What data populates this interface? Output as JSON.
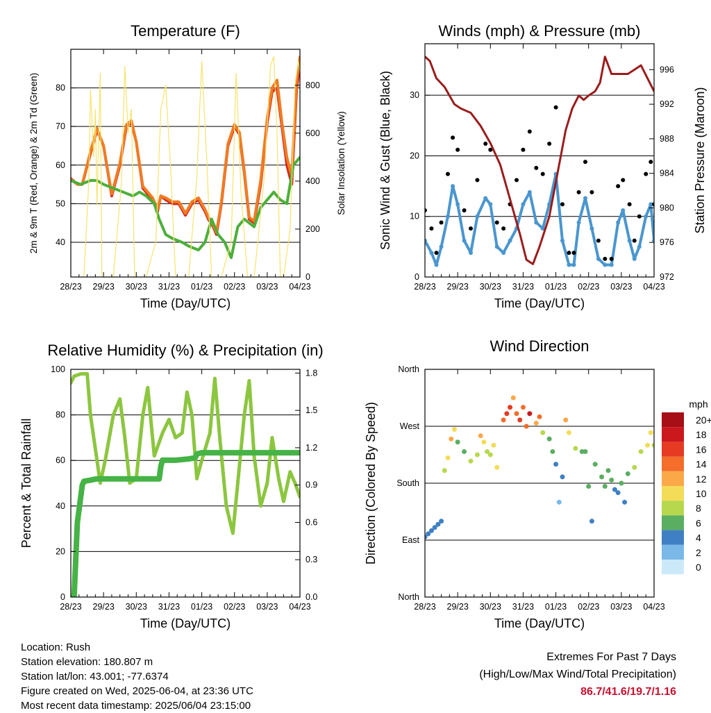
{
  "figure": {
    "x_tick_labels": [
      "28/23",
      "29/23",
      "30/23",
      "31/23",
      "01/23",
      "02/23",
      "03/23",
      "04/23"
    ],
    "x_axis_label": "Time (Day/UTC)"
  },
  "info": {
    "location": "Location: Rush",
    "elevation": "Station elevation: 180.807 m",
    "latlon": "Station lat/lon: 43.001; -77.6374",
    "created": "Figure created on Wed, 2025-06-04, at 23:36 UTC",
    "recent": "Most recent data timestamp: 2025/06/04 23:15:00"
  },
  "extremes": {
    "title": "Extremes For Past 7 Days",
    "subtitle": "(High/Low/Max Wind/Total Precipitation)",
    "values": "86.7/41.6/19.7/1.16"
  },
  "colors": {
    "red": "#d7261e",
    "orange": "#f07c22",
    "green": "#4caf3a",
    "yellow": "#f7e36b",
    "black": "#000000",
    "blue": "#4a96cf",
    "maroon": "#9b1c1c",
    "rh": "#8cc63f",
    "precip": "#45b345"
  },
  "chart_data": [
    {
      "type": "line",
      "title": "Temperature (F)",
      "xlabel": "Time (Day/UTC)",
      "ylabel": "2m & 9m T (Red, Orange) & 2m Td (Green)",
      "y2label": "Solar Insolation (Yellow)",
      "xlim": [
        0,
        7
      ],
      "ylim": [
        31,
        90
      ],
      "y2lim": [
        0,
        950
      ],
      "yticks": [
        40,
        50,
        60,
        70,
        80
      ],
      "y2ticks": [
        0,
        200,
        400,
        600,
        800
      ],
      "series": [
        {
          "name": "2m T",
          "color": "red",
          "x": [
            0,
            0.2,
            0.35,
            0.6,
            0.8,
            1.0,
            1.25,
            1.5,
            1.7,
            1.85,
            2.0,
            2.2,
            2.5,
            2.65,
            2.75,
            2.9,
            3.1,
            3.3,
            3.5,
            3.7,
            3.9,
            4.1,
            4.2,
            4.35,
            4.45,
            4.6,
            4.8,
            5.0,
            5.15,
            5.3,
            5.45,
            5.6,
            5.8,
            6.0,
            6.15,
            6.3,
            6.45,
            6.6,
            6.75,
            6.9,
            7.0
          ],
          "y": [
            56.5,
            55,
            55,
            63,
            69,
            65,
            52,
            60,
            70,
            71,
            66,
            54,
            51,
            48,
            52,
            51,
            50,
            50,
            47,
            50,
            51,
            48,
            46,
            44,
            42,
            50,
            65,
            70,
            68,
            58,
            46,
            45,
            55,
            71,
            79,
            80,
            70,
            60,
            55,
            80,
            86
          ]
        },
        {
          "name": "9m T",
          "color": "orange",
          "x": [
            0,
            0.2,
            0.35,
            0.6,
            0.8,
            1.0,
            1.25,
            1.5,
            1.7,
            1.85,
            2.0,
            2.2,
            2.5,
            2.65,
            2.75,
            2.9,
            3.1,
            3.3,
            3.5,
            3.7,
            3.9,
            4.1,
            4.2,
            4.35,
            4.45,
            4.6,
            4.8,
            5.0,
            5.15,
            5.3,
            5.45,
            5.6,
            5.8,
            6.0,
            6.15,
            6.3,
            6.45,
            6.6,
            6.75,
            6.9,
            7.0
          ],
          "y": [
            56.3,
            55,
            55,
            63.5,
            69.5,
            65,
            52.5,
            60.5,
            70.5,
            71.5,
            66,
            54.5,
            51.5,
            48.5,
            52,
            51.5,
            50.5,
            50.5,
            47.5,
            50.5,
            51.5,
            48.5,
            46.5,
            44.5,
            42.5,
            50.5,
            65.5,
            70.5,
            68.5,
            58.5,
            46.5,
            45.5,
            56,
            72,
            80,
            82,
            71,
            62,
            57,
            82,
            88
          ]
        },
        {
          "name": "2m Td",
          "color": "green",
          "x": [
            0,
            0.3,
            0.6,
            0.8,
            1.0,
            1.3,
            1.6,
            1.9,
            2.1,
            2.3,
            2.55,
            2.7,
            2.9,
            3.1,
            3.4,
            3.6,
            3.9,
            4.1,
            4.3,
            4.5,
            4.7,
            4.9,
            5.1,
            5.3,
            5.45,
            5.6,
            5.8,
            6.0,
            6.2,
            6.4,
            6.6,
            6.8,
            7.0
          ],
          "y": [
            56,
            55,
            56,
            56,
            55,
            54,
            53,
            52,
            53,
            52,
            50,
            46,
            42,
            41,
            40,
            39,
            38,
            40,
            46,
            42,
            40,
            36,
            44,
            46,
            45,
            44,
            49,
            51,
            53,
            51,
            50,
            60,
            62
          ]
        },
        {
          "name": "Solar Insolation",
          "color": "yellow",
          "axis": "y2",
          "x": [
            0.4,
            0.55,
            0.6,
            0.7,
            0.75,
            0.8,
            0.9,
            0.95,
            1.3,
            1.55,
            1.65,
            1.75,
            1.85,
            1.95,
            2.3,
            2.6,
            2.75,
            2.9,
            3.05,
            3.2,
            3.3,
            3.6,
            3.85,
            4.0,
            4.15,
            4.3,
            4.6,
            4.9,
            5.05,
            5.1,
            5.2,
            5.4,
            5.6,
            5.9,
            6.1,
            6.2,
            6.3,
            6.4,
            6.5,
            6.7,
            6.85,
            6.95,
            7.0
          ],
          "y": [
            0,
            400,
            780,
            500,
            700,
            300,
            850,
            0,
            0,
            400,
            880,
            600,
            700,
            0,
            0,
            150,
            700,
            800,
            450,
            0,
            0,
            0,
            420,
            900,
            500,
            0,
            0,
            150,
            850,
            700,
            350,
            0,
            0,
            400,
            880,
            920,
            600,
            0,
            0,
            200,
            800,
            900,
            850
          ]
        }
      ]
    },
    {
      "type": "scatter",
      "title": "Winds (mph) & Pressure (mb)",
      "xlabel": "Time (Day/UTC)",
      "ylabel": "Sonic Wind & Gust (Blue, Black)",
      "y2label": "Station Pressure (Maroon)",
      "xlim": [
        0,
        7
      ],
      "ylim": [
        0,
        38.5
      ],
      "y2lim": [
        972,
        999
      ],
      "yticks": [
        0,
        10,
        20,
        30
      ],
      "y2ticks": [
        972,
        976,
        980,
        984,
        988,
        992,
        996
      ],
      "series": [
        {
          "name": "Wind",
          "color": "blue",
          "x": [
            0,
            0.2,
            0.35,
            0.5,
            0.7,
            0.85,
            1.0,
            1.2,
            1.4,
            1.6,
            1.85,
            2.0,
            2.2,
            2.4,
            2.6,
            2.8,
            3.0,
            3.2,
            3.4,
            3.6,
            3.8,
            4.0,
            4.2,
            4.4,
            4.55,
            4.7,
            4.9,
            5.1,
            5.3,
            5.5,
            5.7,
            5.9,
            6.05,
            6.25,
            6.4,
            6.55,
            6.75,
            6.9,
            7.0
          ],
          "y": [
            6,
            4,
            2,
            5,
            10,
            15,
            12,
            6,
            4,
            10,
            13,
            12,
            5,
            4,
            6,
            8,
            12,
            14,
            9,
            8,
            12,
            17,
            6,
            2,
            2,
            9,
            13,
            8,
            3,
            2,
            2,
            9,
            11,
            6,
            3,
            5,
            10,
            12,
            6
          ]
        },
        {
          "name": "Gust",
          "color": "black",
          "x": [
            0,
            0.2,
            0.35,
            0.5,
            0.7,
            0.85,
            1.0,
            1.2,
            1.4,
            1.6,
            1.85,
            2.0,
            2.2,
            2.4,
            2.6,
            2.8,
            3.0,
            3.2,
            3.4,
            3.6,
            3.8,
            4.0,
            4.2,
            4.4,
            4.55,
            4.7,
            4.9,
            5.1,
            5.3,
            5.5,
            5.7,
            5.9,
            6.05,
            6.25,
            6.4,
            6.55,
            6.75,
            6.9,
            7.0
          ],
          "y": [
            11,
            8,
            4,
            9,
            17,
            23,
            21,
            11,
            8,
            16,
            22,
            21,
            9,
            8,
            12,
            16,
            21,
            24,
            18,
            17,
            22,
            28,
            12,
            4,
            4,
            14,
            19,
            14,
            6,
            3,
            3,
            15,
            16,
            12,
            6,
            10,
            17,
            19,
            12
          ]
        },
        {
          "name": "Pressure",
          "color": "maroon",
          "axis": "y2",
          "x": [
            0,
            0.15,
            0.35,
            0.6,
            0.9,
            1.1,
            1.4,
            1.7,
            2.0,
            2.3,
            2.6,
            2.9,
            3.1,
            3.3,
            3.5,
            3.8,
            4.1,
            4.3,
            4.5,
            4.7,
            4.85,
            5.0,
            5.2,
            5.35,
            5.5,
            5.7,
            5.85,
            6.0,
            6.2,
            6.4,
            6.6,
            6.8,
            7.0
          ],
          "y": [
            997.5,
            997,
            995,
            994,
            992,
            991.5,
            991,
            989.5,
            987.5,
            985,
            981,
            977,
            974,
            973.5,
            975.5,
            979,
            985,
            989,
            991.5,
            993,
            992.5,
            993,
            993.5,
            994.5,
            997.5,
            995.5,
            995.5,
            995.5,
            995.5,
            996,
            996.5,
            995,
            993.5
          ]
        }
      ]
    },
    {
      "type": "line",
      "title": "Relative Humidity (%) & Precipitation (in)",
      "xlabel": "Time (Day/UTC)",
      "ylabel": "Percent & Total Rainfall",
      "xlim": [
        0,
        7
      ],
      "ylim": [
        0,
        100
      ],
      "y2lim": [
        0,
        1.83
      ],
      "yticks": [
        0,
        20,
        40,
        60,
        80,
        100
      ],
      "y2ticks": [
        0.0,
        0.3,
        0.6,
        0.9,
        1.2,
        1.5,
        1.8
      ],
      "series": [
        {
          "name": "Relative Humidity",
          "color": "rh",
          "x": [
            0,
            0.1,
            0.3,
            0.5,
            0.6,
            0.8,
            0.9,
            1.05,
            1.3,
            1.5,
            1.65,
            1.8,
            2.0,
            2.2,
            2.35,
            2.55,
            2.8,
            3.0,
            3.2,
            3.4,
            3.55,
            3.7,
            3.85,
            4.0,
            4.25,
            4.4,
            4.55,
            4.75,
            4.95,
            5.1,
            5.3,
            5.45,
            5.6,
            5.8,
            6.0,
            6.15,
            6.35,
            6.5,
            6.7,
            6.85,
            7.0
          ],
          "y": [
            94,
            97,
            98,
            98,
            80,
            60,
            50,
            60,
            80,
            87,
            70,
            50,
            52,
            80,
            92,
            62,
            72,
            78,
            70,
            72,
            90,
            80,
            52,
            60,
            72,
            96,
            70,
            40,
            28,
            50,
            80,
            95,
            62,
            40,
            50,
            70,
            52,
            42,
            55,
            50,
            44
          ]
        },
        {
          "name": "Total Precipitation",
          "color": "precip",
          "axis": "y2",
          "x": [
            0,
            0.1,
            0.15,
            0.2,
            0.3,
            0.35,
            0.4,
            0.6,
            0.8,
            1.0,
            1.5,
            2.0,
            2.5,
            2.7,
            2.75,
            2.8,
            3.2,
            3.6,
            3.8,
            3.85,
            4.0,
            5.0,
            6.0,
            7.0
          ],
          "y": [
            0,
            0,
            0.3,
            0.6,
            0.8,
            0.9,
            0.93,
            0.94,
            0.95,
            0.95,
            0.95,
            0.95,
            0.95,
            0.95,
            1.05,
            1.1,
            1.1,
            1.11,
            1.12,
            1.15,
            1.16,
            1.16,
            1.16,
            1.16
          ]
        }
      ]
    },
    {
      "type": "scatter",
      "title": "Wind Direction",
      "xlabel": "Time (Day/UTC)",
      "ylabel": "Direction (Colored By Speed)",
      "xlim": [
        0,
        7
      ],
      "ylim": [
        0,
        360
      ],
      "y_tick_labels": [
        {
          "value": 0,
          "label": "North"
        },
        {
          "value": 90,
          "label": "East"
        },
        {
          "value": 180,
          "label": "South"
        },
        {
          "value": 270,
          "label": "West"
        },
        {
          "value": 360,
          "label": "North"
        }
      ],
      "legend": {
        "title": "mph",
        "labels": [
          "20+",
          "18",
          "16",
          "14",
          "12",
          "10",
          "8",
          "6",
          "4",
          "2",
          "0"
        ],
        "colors": [
          "#a50f15",
          "#cb181d",
          "#e63a22",
          "#f46d2b",
          "#fba849",
          "#f3dc58",
          "#b7d84e",
          "#5aae61",
          "#3f80c4",
          "#7ab8e8",
          "#cce9fa"
        ]
      },
      "series": [
        {
          "name": "Direction",
          "x": [
            0,
            0.1,
            0.2,
            0.3,
            0.4,
            0.5,
            0.6,
            0.7,
            0.8,
            0.9,
            1.0,
            1.2,
            1.4,
            1.6,
            1.7,
            1.8,
            1.9,
            2.0,
            2.1,
            2.2,
            2.4,
            2.5,
            2.6,
            2.7,
            2.8,
            2.9,
            3.0,
            3.1,
            3.2,
            3.4,
            3.5,
            3.6,
            3.8,
            3.9,
            4.0,
            4.1,
            4.2,
            4.3,
            4.4,
            4.6,
            4.8,
            4.9,
            5.0,
            5.1,
            5.2,
            5.4,
            5.5,
            5.6,
            5.7,
            5.8,
            5.9,
            6.0,
            6.1,
            6.2,
            6.4,
            6.6,
            6.8,
            6.9,
            7.0
          ],
          "y": [
            95,
            100,
            105,
            110,
            115,
            120,
            200,
            220,
            250,
            265,
            245,
            230,
            215,
            225,
            255,
            245,
            230,
            225,
            240,
            205,
            280,
            290,
            300,
            315,
            290,
            280,
            300,
            270,
            290,
            275,
            285,
            260,
            250,
            230,
            210,
            150,
            190,
            280,
            260,
            235,
            230,
            230,
            175,
            120,
            210,
            190,
            175,
            200,
            185,
            170,
            165,
            180,
            150,
            195,
            205,
            230,
            240,
            260,
            240
          ],
          "speed": [
            3,
            3,
            4,
            3,
            4,
            3,
            8,
            10,
            12,
            10,
            6,
            5,
            8,
            8,
            12,
            10,
            8,
            8,
            10,
            9,
            14,
            16,
            15,
            12,
            14,
            15,
            14,
            13,
            18,
            12,
            14,
            8,
            6,
            5,
            4,
            2,
            4,
            12,
            10,
            8,
            6,
            6,
            5,
            4,
            6,
            6,
            5,
            6,
            5,
            4,
            4,
            5,
            3,
            5,
            7,
            8,
            9,
            10,
            8
          ]
        }
      ]
    }
  ]
}
